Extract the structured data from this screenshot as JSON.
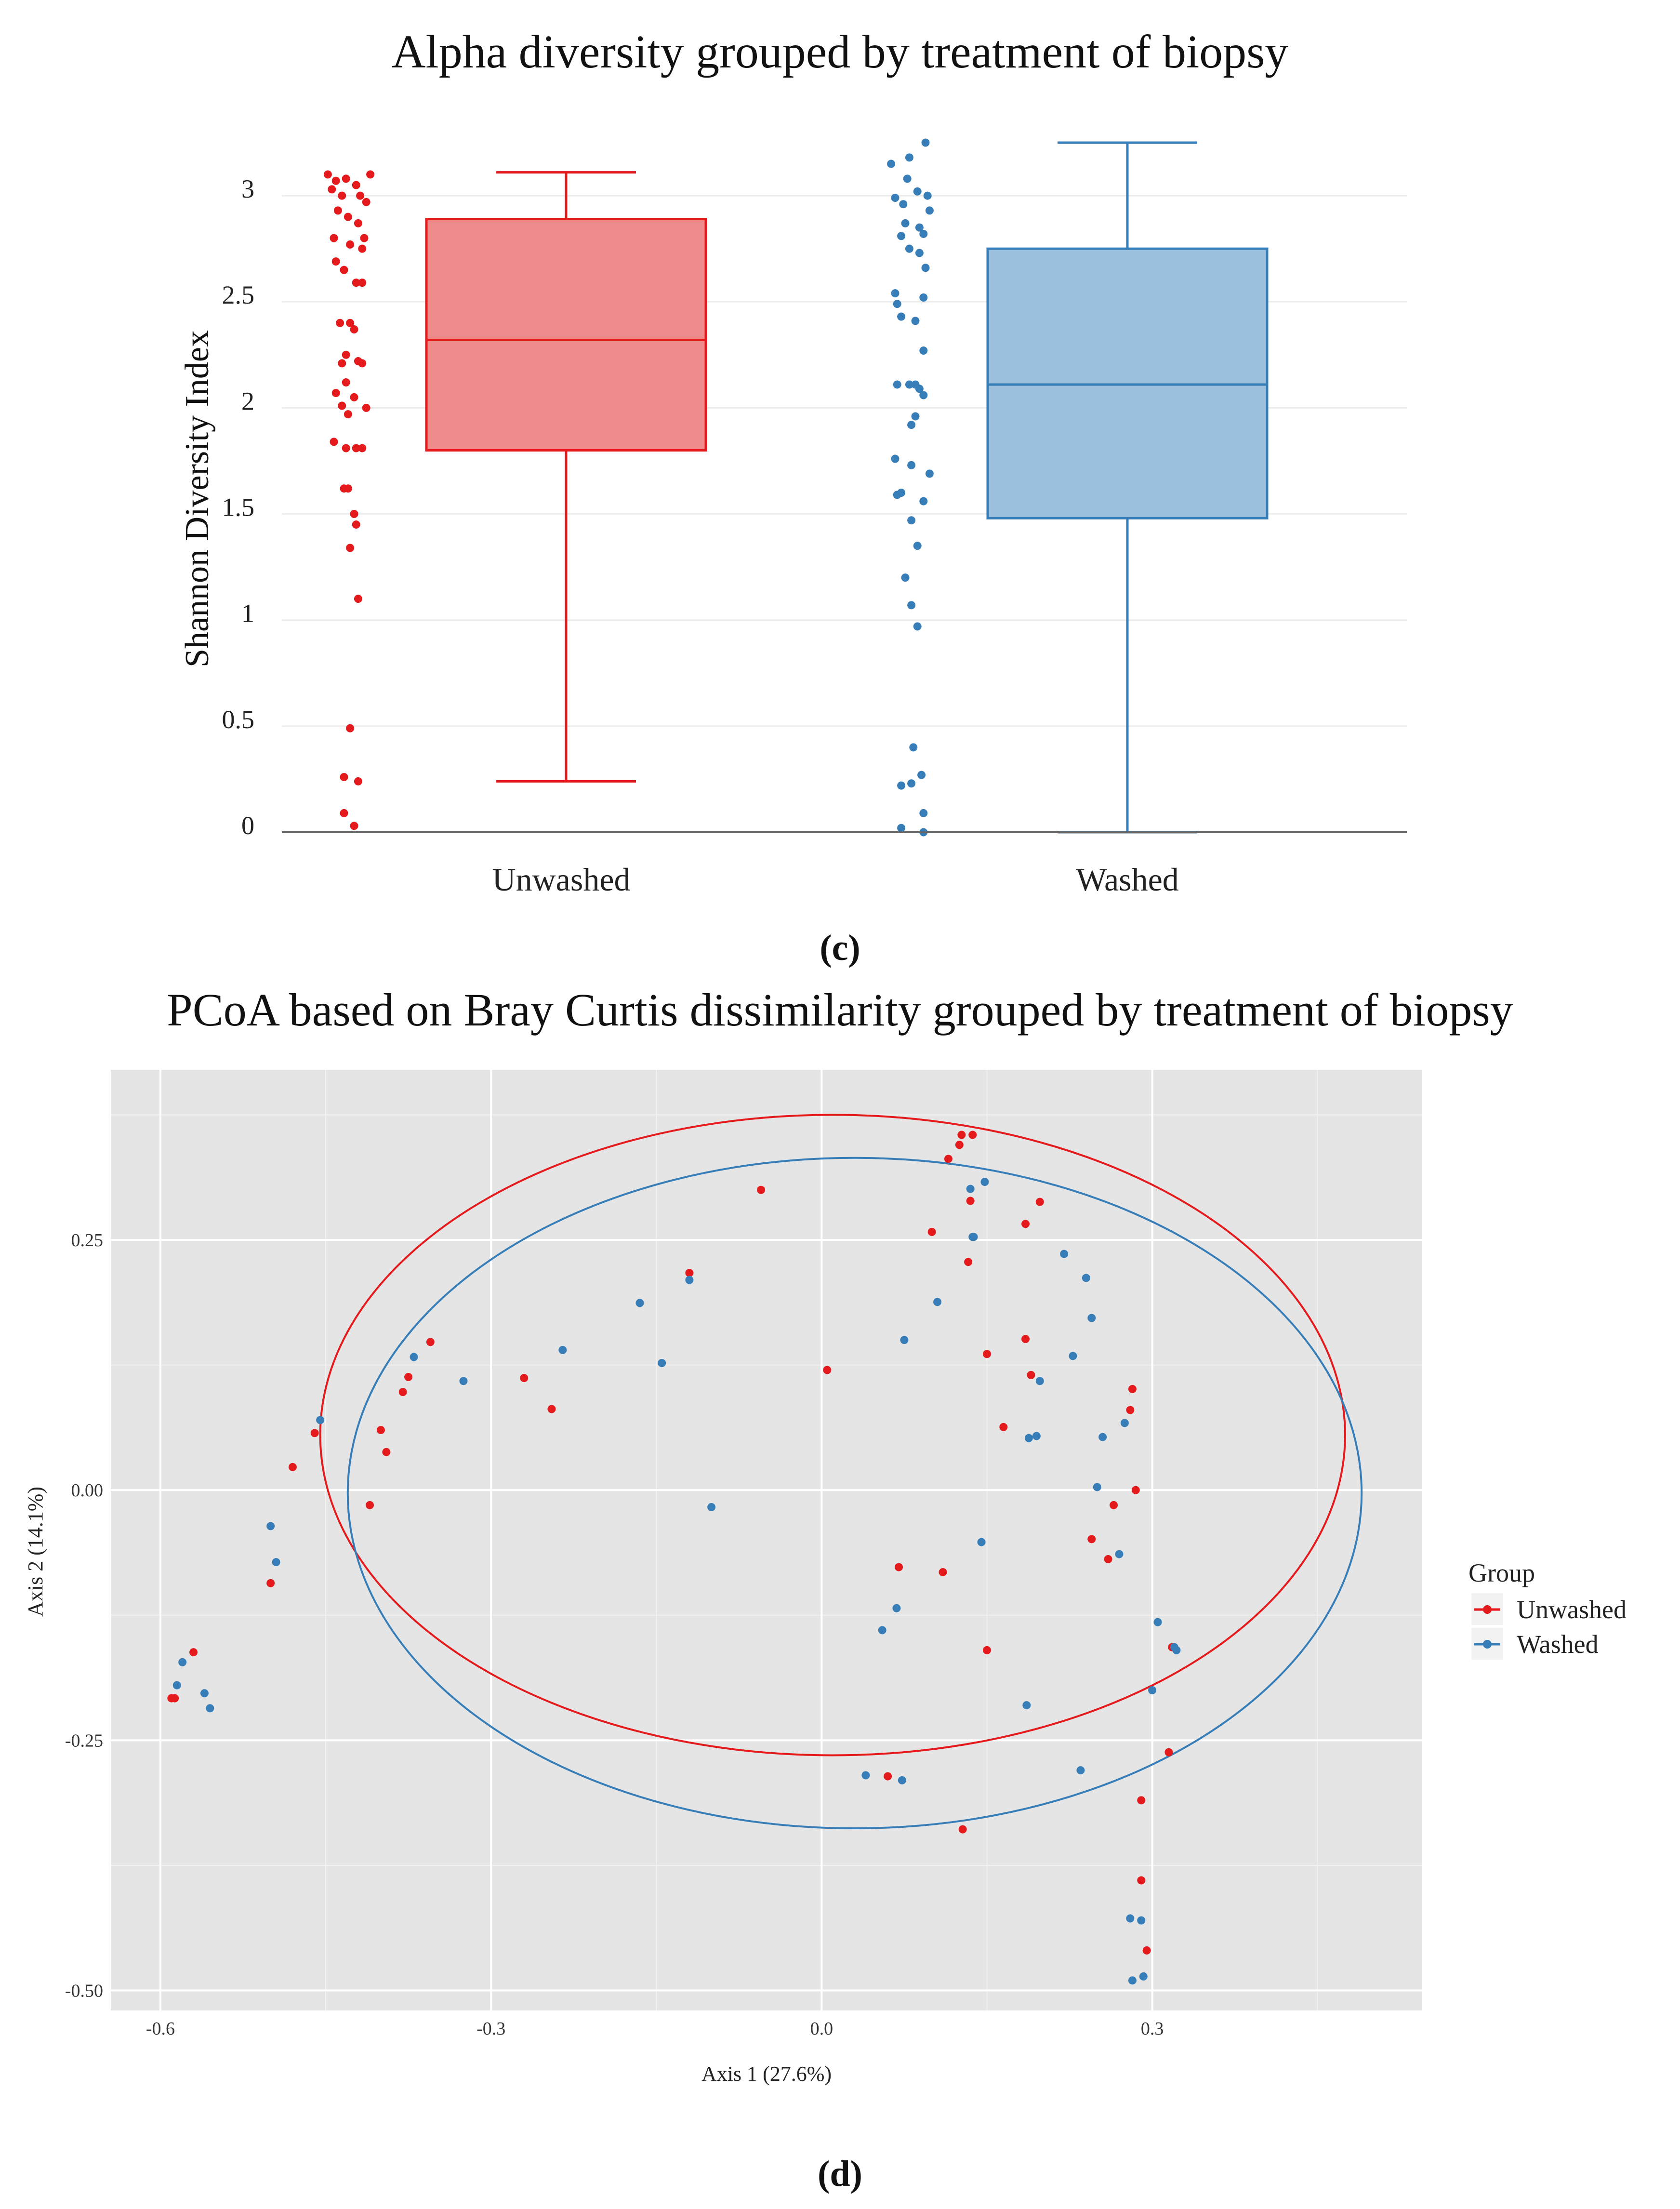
{
  "chart_data": [
    {
      "type": "box",
      "title": "Alpha diversity grouped by treatment of biopsy",
      "panel_label": "(c)",
      "xlabel": "",
      "ylabel": "Shannon Diversity Index",
      "ylim": [
        0,
        3.25
      ],
      "yticks": [
        0,
        0.5,
        1,
        1.5,
        2,
        2.5,
        3
      ],
      "ytick_labels": [
        "0",
        "0.5",
        "1",
        "1.5",
        "2",
        "2.5",
        "3"
      ],
      "grid": true,
      "categories": [
        "Unwashed",
        "Washed"
      ],
      "boxes": [
        {
          "name": "Unwashed",
          "color": "#e41a1c",
          "fill": "#f08b8b",
          "min": 0.24,
          "q1": 1.8,
          "median": 2.32,
          "q3": 2.89,
          "max": 3.11
        },
        {
          "name": "Washed",
          "color": "#377eb8",
          "fill": "#9dbfde",
          "min": 0.0,
          "q1": 1.48,
          "median": 2.11,
          "q3": 2.75,
          "max": 3.25
        }
      ],
      "points": {
        "Unwashed": [
          {
            "x": -0.13,
            "y": 3.1
          },
          {
            "x": -0.09,
            "y": 3.07
          },
          {
            "x": -0.04,
            "y": 3.08
          },
          {
            "x": 0.01,
            "y": 3.05
          },
          {
            "x": 0.08,
            "y": 3.1
          },
          {
            "x": -0.11,
            "y": 3.03
          },
          {
            "x": -0.06,
            "y": 3.0
          },
          {
            "x": 0.03,
            "y": 3.0
          },
          {
            "x": 0.06,
            "y": 2.97
          },
          {
            "x": -0.08,
            "y": 2.93
          },
          {
            "x": -0.03,
            "y": 2.9
          },
          {
            "x": 0.02,
            "y": 2.87
          },
          {
            "x": 0.05,
            "y": 2.8
          },
          {
            "x": -0.1,
            "y": 2.8
          },
          {
            "x": -0.02,
            "y": 2.77
          },
          {
            "x": 0.04,
            "y": 2.75
          },
          {
            "x": -0.09,
            "y": 2.69
          },
          {
            "x": -0.05,
            "y": 2.65
          },
          {
            "x": 0.01,
            "y": 2.59
          },
          {
            "x": 0.04,
            "y": 2.59
          },
          {
            "x": -0.07,
            "y": 2.4
          },
          {
            "x": -0.02,
            "y": 2.4
          },
          {
            "x": 0.0,
            "y": 2.37
          },
          {
            "x": -0.04,
            "y": 2.25
          },
          {
            "x": 0.02,
            "y": 2.22
          },
          {
            "x": 0.04,
            "y": 2.21
          },
          {
            "x": -0.06,
            "y": 2.21
          },
          {
            "x": -0.04,
            "y": 2.12
          },
          {
            "x": -0.09,
            "y": 2.07
          },
          {
            "x": 0.0,
            "y": 2.05
          },
          {
            "x": -0.06,
            "y": 2.01
          },
          {
            "x": 0.06,
            "y": 2.0
          },
          {
            "x": -0.03,
            "y": 1.97
          },
          {
            "x": -0.1,
            "y": 1.84
          },
          {
            "x": -0.04,
            "y": 1.81
          },
          {
            "x": 0.01,
            "y": 1.81
          },
          {
            "x": 0.04,
            "y": 1.81
          },
          {
            "x": -0.05,
            "y": 1.62
          },
          {
            "x": -0.03,
            "y": 1.62
          },
          {
            "x": 0.0,
            "y": 1.5
          },
          {
            "x": 0.01,
            "y": 1.45
          },
          {
            "x": -0.02,
            "y": 1.34
          },
          {
            "x": 0.02,
            "y": 1.1
          },
          {
            "x": -0.02,
            "y": 0.49
          },
          {
            "x": -0.05,
            "y": 0.26
          },
          {
            "x": 0.02,
            "y": 0.24
          },
          {
            "x": -0.05,
            "y": 0.09
          },
          {
            "x": 0.0,
            "y": 0.03
          }
        ],
        "Washed": [
          {
            "x": -0.12,
            "y": 3.15
          },
          {
            "x": -0.03,
            "y": 3.18
          },
          {
            "x": 0.05,
            "y": 3.25
          },
          {
            "x": -0.04,
            "y": 3.08
          },
          {
            "x": 0.01,
            "y": 3.02
          },
          {
            "x": -0.1,
            "y": 2.99
          },
          {
            "x": 0.06,
            "y": 3.0
          },
          {
            "x": -0.06,
            "y": 2.96
          },
          {
            "x": 0.07,
            "y": 2.93
          },
          {
            "x": -0.05,
            "y": 2.87
          },
          {
            "x": 0.02,
            "y": 2.85
          },
          {
            "x": -0.07,
            "y": 2.81
          },
          {
            "x": 0.04,
            "y": 2.82
          },
          {
            "x": -0.03,
            "y": 2.75
          },
          {
            "x": 0.02,
            "y": 2.73
          },
          {
            "x": 0.05,
            "y": 2.66
          },
          {
            "x": -0.1,
            "y": 2.54
          },
          {
            "x": -0.09,
            "y": 2.49
          },
          {
            "x": 0.04,
            "y": 2.52
          },
          {
            "x": -0.07,
            "y": 2.43
          },
          {
            "x": 0.0,
            "y": 2.41
          },
          {
            "x": 0.04,
            "y": 2.27
          },
          {
            "x": -0.09,
            "y": 2.11
          },
          {
            "x": -0.03,
            "y": 2.11
          },
          {
            "x": 0.0,
            "y": 2.11
          },
          {
            "x": 0.02,
            "y": 2.09
          },
          {
            "x": 0.04,
            "y": 2.06
          },
          {
            "x": -0.02,
            "y": 1.92
          },
          {
            "x": 0.0,
            "y": 1.96
          },
          {
            "x": -0.1,
            "y": 1.76
          },
          {
            "x": -0.02,
            "y": 1.73
          },
          {
            "x": 0.07,
            "y": 1.69
          },
          {
            "x": -0.09,
            "y": 1.59
          },
          {
            "x": -0.07,
            "y": 1.6
          },
          {
            "x": 0.04,
            "y": 1.56
          },
          {
            "x": -0.02,
            "y": 1.47
          },
          {
            "x": 0.01,
            "y": 1.35
          },
          {
            "x": -0.05,
            "y": 1.2
          },
          {
            "x": -0.02,
            "y": 1.07
          },
          {
            "x": 0.01,
            "y": 0.97
          },
          {
            "x": -0.01,
            "y": 0.4
          },
          {
            "x": 0.03,
            "y": 0.27
          },
          {
            "x": -0.07,
            "y": 0.22
          },
          {
            "x": -0.02,
            "y": 0.23
          },
          {
            "x": 0.04,
            "y": 0.09
          },
          {
            "x": -0.07,
            "y": 0.02
          },
          {
            "x": 0.04,
            "y": 0.0
          }
        ]
      }
    },
    {
      "type": "scatter",
      "title": "PCoA based on Bray Curtis dissimilarity grouped by treatment of biopsy",
      "panel_label": "(d)",
      "xlabel": "Axis 1 (27.6%)",
      "ylabel": "Axis 2 (14.1%)",
      "xlim": [
        -0.645,
        0.545
      ],
      "ylim": [
        -0.52,
        0.42
      ],
      "xticks": [
        -0.6,
        -0.3,
        0.0,
        0.3
      ],
      "xtick_labels": [
        "-0.6",
        "-0.3",
        "0.0",
        "0.3"
      ],
      "yticks": [
        -0.5,
        -0.25,
        0.0,
        0.25
      ],
      "ytick_labels": [
        "-0.50",
        "-0.25",
        "0.00",
        "0.25"
      ],
      "background": "#e5e5e5",
      "grid_color": "#ffffff",
      "legend": {
        "title": "Group",
        "position": "right",
        "entries": [
          {
            "label": "Unwashed",
            "color": "#e41a1c"
          },
          {
            "label": "Washed",
            "color": "#377eb8"
          }
        ]
      },
      "ellipses": [
        {
          "group": "Unwashed",
          "cx": 0.01,
          "cy": 0.055,
          "rx": 0.465,
          "ry": 0.32
        },
        {
          "group": "Washed",
          "cx": 0.03,
          "cy": -0.003,
          "rx": 0.46,
          "ry": 0.335
        }
      ],
      "series": [
        {
          "name": "Unwashed",
          "color": "#e41a1c",
          "points": [
            [
              -0.59,
              -0.208
            ],
            [
              -0.587,
              -0.208
            ],
            [
              -0.57,
              -0.162
            ],
            [
              -0.5,
              -0.093
            ],
            [
              -0.48,
              0.023
            ],
            [
              -0.46,
              0.057
            ],
            [
              -0.41,
              -0.015
            ],
            [
              -0.4,
              0.06
            ],
            [
              -0.395,
              0.038
            ],
            [
              -0.38,
              0.098
            ],
            [
              -0.375,
              0.113
            ],
            [
              -0.355,
              0.148
            ],
            [
              -0.27,
              0.112
            ],
            [
              -0.245,
              0.081
            ],
            [
              -0.12,
              0.217
            ],
            [
              -0.055,
              0.3
            ],
            [
              0.005,
              0.12
            ],
            [
              0.06,
              -0.286
            ],
            [
              0.07,
              -0.077
            ],
            [
              0.1,
              0.258
            ],
            [
              0.11,
              -0.082
            ],
            [
              0.115,
              0.331
            ],
            [
              0.125,
              0.345
            ],
            [
              0.127,
              0.355
            ],
            [
              0.128,
              -0.339
            ],
            [
              0.133,
              0.228
            ],
            [
              0.135,
              0.289
            ],
            [
              0.137,
              0.355
            ],
            [
              0.15,
              0.136
            ],
            [
              0.15,
              -0.16
            ],
            [
              0.165,
              0.063
            ],
            [
              0.185,
              0.151
            ],
            [
              0.185,
              0.266
            ],
            [
              0.19,
              0.115
            ],
            [
              0.198,
              0.288
            ],
            [
              0.245,
              -0.049
            ],
            [
              0.26,
              -0.069
            ],
            [
              0.265,
              -0.015
            ],
            [
              0.28,
              0.08
            ],
            [
              0.282,
              0.101
            ],
            [
              0.285,
              0.0
            ],
            [
              0.29,
              -0.31
            ],
            [
              0.29,
              -0.39
            ],
            [
              0.295,
              -0.46
            ],
            [
              0.315,
              -0.262
            ],
            [
              0.318,
              -0.157
            ]
          ]
        },
        {
          "name": "Washed",
          "color": "#377eb8",
          "points": [
            [
              -0.585,
              -0.195
            ],
            [
              -0.58,
              -0.172
            ],
            [
              -0.56,
              -0.203
            ],
            [
              -0.555,
              -0.218
            ],
            [
              -0.5,
              -0.036
            ],
            [
              -0.495,
              -0.072
            ],
            [
              -0.455,
              0.07
            ],
            [
              -0.37,
              0.133
            ],
            [
              -0.325,
              0.109
            ],
            [
              -0.235,
              0.14
            ],
            [
              -0.165,
              0.187
            ],
            [
              -0.145,
              0.127
            ],
            [
              -0.12,
              0.21
            ],
            [
              -0.1,
              -0.017
            ],
            [
              0.04,
              -0.285
            ],
            [
              0.055,
              -0.14
            ],
            [
              0.068,
              -0.118
            ],
            [
              0.073,
              -0.29
            ],
            [
              0.075,
              0.15
            ],
            [
              0.105,
              0.188
            ],
            [
              0.135,
              0.301
            ],
            [
              0.137,
              0.253
            ],
            [
              0.138,
              0.253
            ],
            [
              0.145,
              -0.052
            ],
            [
              0.148,
              0.308
            ],
            [
              0.186,
              -0.215
            ],
            [
              0.188,
              0.052
            ],
            [
              0.195,
              0.054
            ],
            [
              0.198,
              0.109
            ],
            [
              0.22,
              0.236
            ],
            [
              0.228,
              0.134
            ],
            [
              0.235,
              -0.28
            ],
            [
              0.24,
              0.212
            ],
            [
              0.245,
              0.172
            ],
            [
              0.25,
              0.003
            ],
            [
              0.255,
              0.053
            ],
            [
              0.27,
              -0.064
            ],
            [
              0.275,
              0.067
            ],
            [
              0.28,
              -0.428
            ],
            [
              0.282,
              -0.49
            ],
            [
              0.29,
              -0.43
            ],
            [
              0.292,
              -0.486
            ],
            [
              0.3,
              -0.2
            ],
            [
              0.305,
              -0.132
            ],
            [
              0.32,
              -0.157
            ],
            [
              0.322,
              -0.16
            ]
          ]
        }
      ]
    }
  ]
}
